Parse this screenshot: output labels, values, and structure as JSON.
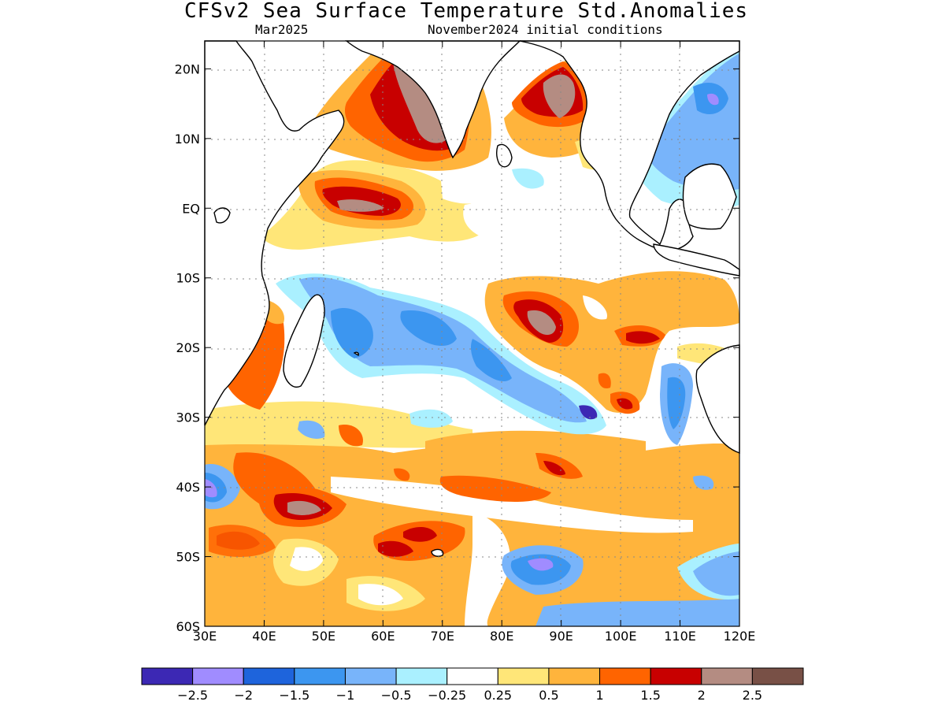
{
  "title": "CFSv2 Sea Surface Temperature Std.Anomalies",
  "valid_month": "Mar2025",
  "initial_conditions": "November2024 initial conditions",
  "map": {
    "lon_range": [
      30,
      120
    ],
    "lat_range": [
      -60,
      24
    ],
    "lon_ticks": [
      "30E",
      "40E",
      "50E",
      "60E",
      "70E",
      "80E",
      "90E",
      "100E",
      "110E",
      "120E"
    ],
    "lat_ticks": [
      "20N",
      "10N",
      "EQ",
      "10S",
      "20S",
      "30S",
      "40S",
      "50S",
      "60S"
    ]
  },
  "colorbar": {
    "colors": [
      "#3c28b4",
      "#a08cff",
      "#1e64dc",
      "#3c96f0",
      "#78b4fa",
      "#aaf0ff",
      "#ffffff",
      "#ffe678",
      "#ffb43c",
      "#ff6400",
      "#c80000",
      "#b48c82",
      "#785046"
    ],
    "labels": [
      "-2.5",
      "-2",
      "-1.5",
      "-1",
      "-0.5",
      "-0.25",
      "0.25",
      "0.5",
      "1",
      "1.5",
      "2",
      "2.5"
    ]
  }
}
